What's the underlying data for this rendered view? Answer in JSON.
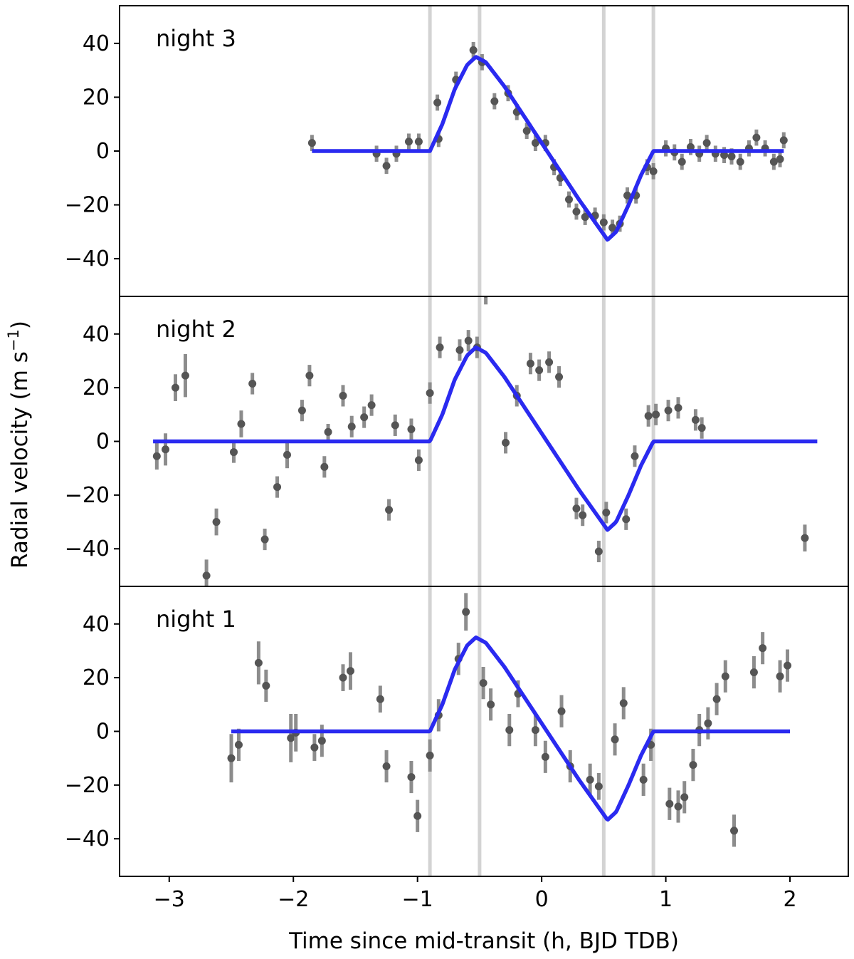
{
  "chart_data": {
    "type": "scatter",
    "xlabel": "Time since mid-transit (h, BJD TDB)",
    "ylabel": "Radial velocity (m s",
    "ylabel_unit_exponent": "−1",
    "ylabel_close": ")",
    "xlim": [
      -3.4,
      2.47
    ],
    "ylim": [
      -54,
      54
    ],
    "x_ticks": [
      -3,
      -2,
      -1,
      0,
      1,
      2
    ],
    "x_tick_labels": [
      "−3",
      "−2",
      "−1",
      "0",
      "1",
      "2"
    ],
    "y_ticks": [
      -40,
      -20,
      0,
      20,
      40
    ],
    "y_tick_labels": [
      "−40",
      "−20",
      "0",
      "20",
      "40"
    ],
    "vertical_lines": [
      -0.9,
      -0.5,
      0.5,
      0.9
    ],
    "colors": {
      "model": "#2a2af0",
      "points": "#555555",
      "errorbars": "#8c8c8c",
      "contact_lines": "#d3d3d3"
    },
    "model_breakpoints": [
      [
        -0.9,
        0
      ],
      [
        -0.8,
        10
      ],
      [
        -0.7,
        23
      ],
      [
        -0.6,
        32
      ],
      [
        -0.53,
        35
      ],
      [
        -0.45,
        33
      ],
      [
        -0.3,
        24
      ],
      [
        0,
        3
      ],
      [
        0.3,
        -18
      ],
      [
        0.5,
        -31
      ],
      [
        0.53,
        -33
      ],
      [
        0.6,
        -30
      ],
      [
        0.7,
        -20
      ],
      [
        0.8,
        -9
      ],
      [
        0.9,
        0
      ]
    ],
    "panels": [
      {
        "label": "night 3",
        "model_range": [
          -1.85,
          1.95
        ],
        "points": [
          [
            -1.85,
            3,
            3
          ],
          [
            -1.33,
            -1,
            3
          ],
          [
            -1.25,
            -5.5,
            3
          ],
          [
            -1.17,
            -1,
            3
          ],
          [
            -1.07,
            3.5,
            3
          ],
          [
            -0.99,
            3.5,
            3
          ],
          [
            -0.84,
            18,
            3
          ],
          [
            -0.83,
            4.5,
            3
          ],
          [
            -0.69,
            26.5,
            3
          ],
          [
            -0.55,
            37.5,
            3
          ],
          [
            -0.48,
            33,
            3
          ],
          [
            -0.38,
            18.5,
            3
          ],
          [
            -0.27,
            21.5,
            3
          ],
          [
            -0.2,
            14.5,
            3
          ],
          [
            -0.12,
            7.5,
            3
          ],
          [
            -0.05,
            3,
            3
          ],
          [
            0.03,
            3,
            3
          ],
          [
            0.1,
            -6,
            3
          ],
          [
            0.15,
            -10,
            3
          ],
          [
            0.22,
            -18,
            3
          ],
          [
            0.28,
            -22.5,
            3
          ],
          [
            0.35,
            -24.5,
            3
          ],
          [
            0.43,
            -24,
            3
          ],
          [
            0.5,
            -26.5,
            3
          ],
          [
            0.57,
            -28.5,
            3
          ],
          [
            0.63,
            -27,
            3
          ],
          [
            0.69,
            -16.5,
            3
          ],
          [
            0.76,
            -16.5,
            3
          ],
          [
            0.85,
            -6,
            3
          ],
          [
            0.9,
            -7.5,
            3
          ],
          [
            1.0,
            1,
            3
          ],
          [
            1.07,
            -0.5,
            3
          ],
          [
            1.13,
            -4,
            3
          ],
          [
            1.2,
            1.5,
            3
          ],
          [
            1.27,
            -1,
            3
          ],
          [
            1.33,
            3,
            3
          ],
          [
            1.4,
            -1,
            3
          ],
          [
            1.47,
            -1.5,
            3
          ],
          [
            1.53,
            -2,
            3
          ],
          [
            1.6,
            -4,
            3
          ],
          [
            1.67,
            1,
            3
          ],
          [
            1.73,
            5,
            3
          ],
          [
            1.8,
            1,
            3
          ],
          [
            1.87,
            -4,
            3
          ],
          [
            1.92,
            -3,
            3
          ],
          [
            1.95,
            4,
            3
          ]
        ]
      },
      {
        "label": "night 2",
        "model_range": [
          -3.13,
          2.22
        ],
        "points": [
          [
            -3.1,
            -5.5,
            5
          ],
          [
            -3.03,
            -3,
            6
          ],
          [
            -2.95,
            20,
            5
          ],
          [
            -2.87,
            24.5,
            8
          ],
          [
            -2.7,
            -50,
            6
          ],
          [
            -2.62,
            -30,
            5
          ],
          [
            -2.48,
            -4,
            4
          ],
          [
            -2.42,
            6.5,
            5
          ],
          [
            -2.33,
            21.5,
            4
          ],
          [
            -2.23,
            -36.5,
            4
          ],
          [
            -2.13,
            -17,
            4
          ],
          [
            -2.05,
            -5,
            5
          ],
          [
            -1.93,
            11.5,
            4
          ],
          [
            -1.87,
            24.5,
            4
          ],
          [
            -1.75,
            -9.5,
            4
          ],
          [
            -1.72,
            3.5,
            3
          ],
          [
            -1.6,
            17,
            4
          ],
          [
            -1.53,
            5.5,
            4
          ],
          [
            -1.43,
            9,
            4
          ],
          [
            -1.37,
            13.5,
            4
          ],
          [
            -1.23,
            -25.5,
            4
          ],
          [
            -1.18,
            6,
            4
          ],
          [
            -1.05,
            4.5,
            4
          ],
          [
            -0.99,
            -7,
            4
          ],
          [
            -0.9,
            18,
            4
          ],
          [
            -0.82,
            35,
            4
          ],
          [
            -0.66,
            34,
            4
          ],
          [
            -0.59,
            37.5,
            4
          ],
          [
            -0.52,
            35,
            4
          ],
          [
            -0.45,
            55,
            4
          ],
          [
            -0.29,
            -0.5,
            4
          ],
          [
            -0.2,
            17,
            4
          ],
          [
            -0.09,
            29,
            4
          ],
          [
            -0.02,
            26.5,
            4
          ],
          [
            0.06,
            29.5,
            4
          ],
          [
            0.14,
            24,
            4
          ],
          [
            0.28,
            -25,
            4
          ],
          [
            0.33,
            -27.5,
            4
          ],
          [
            0.46,
            -41,
            4
          ],
          [
            0.52,
            -26.5,
            4
          ],
          [
            0.68,
            -29,
            4
          ],
          [
            0.75,
            -5.5,
            4
          ],
          [
            0.86,
            9.5,
            4
          ],
          [
            0.92,
            10,
            4
          ],
          [
            1.02,
            11.5,
            4
          ],
          [
            1.1,
            12.5,
            4
          ],
          [
            1.24,
            8,
            4
          ],
          [
            1.29,
            5,
            4
          ],
          [
            2.12,
            -36,
            5
          ]
        ]
      },
      {
        "label": "night 1",
        "model_range": [
          -2.5,
          2.0
        ],
        "points": [
          [
            -2.5,
            -10,
            9
          ],
          [
            -2.44,
            -5,
            6
          ],
          [
            -2.28,
            25.5,
            8
          ],
          [
            -2.22,
            17,
            6
          ],
          [
            -2.02,
            -2.5,
            9
          ],
          [
            -1.98,
            -0.5,
            7
          ],
          [
            -1.83,
            -6,
            5
          ],
          [
            -1.77,
            -3.5,
            6
          ],
          [
            -1.6,
            20,
            5
          ],
          [
            -1.54,
            22.5,
            7
          ],
          [
            -1.3,
            12,
            5
          ],
          [
            -1.25,
            -13,
            6
          ],
          [
            -1.05,
            -17,
            6
          ],
          [
            -1.0,
            -31.5,
            6
          ],
          [
            -0.9,
            -9,
            6
          ],
          [
            -0.83,
            6,
            6
          ],
          [
            -0.67,
            27,
            6
          ],
          [
            -0.61,
            44.5,
            7
          ],
          [
            -0.47,
            18,
            6
          ],
          [
            -0.41,
            10,
            6
          ],
          [
            -0.26,
            0.5,
            6
          ],
          [
            -0.19,
            14,
            5
          ],
          [
            -0.05,
            0.5,
            6
          ],
          [
            0.03,
            -9.5,
            6
          ],
          [
            0.16,
            7.5,
            6
          ],
          [
            0.23,
            -13,
            6
          ],
          [
            0.39,
            -18,
            6
          ],
          [
            0.46,
            -20.5,
            5
          ],
          [
            0.59,
            -3,
            6
          ],
          [
            0.66,
            10.5,
            6
          ],
          [
            0.82,
            -18,
            6
          ],
          [
            0.88,
            -5,
            6
          ],
          [
            1.03,
            -27,
            6
          ],
          [
            1.1,
            -28,
            6
          ],
          [
            1.15,
            -24.5,
            6
          ],
          [
            1.22,
            -12.5,
            6
          ],
          [
            1.27,
            0.5,
            6
          ],
          [
            1.34,
            3,
            6
          ],
          [
            1.41,
            12,
            6
          ],
          [
            1.48,
            20.5,
            6
          ],
          [
            1.55,
            -37,
            6
          ],
          [
            1.71,
            22,
            6
          ],
          [
            1.78,
            31,
            6
          ],
          [
            1.92,
            20.5,
            6
          ],
          [
            1.98,
            24.5,
            6
          ]
        ]
      }
    ]
  }
}
